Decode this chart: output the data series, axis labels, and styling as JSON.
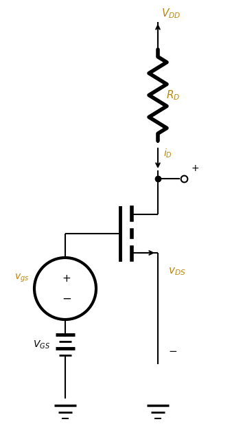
{
  "bg_color": "#ffffff",
  "line_color": "#000000",
  "label_color_orange": "#b8860b",
  "label_color_black": "#000000",
  "fig_width": 3.38,
  "fig_height": 6.36,
  "dpi": 100
}
